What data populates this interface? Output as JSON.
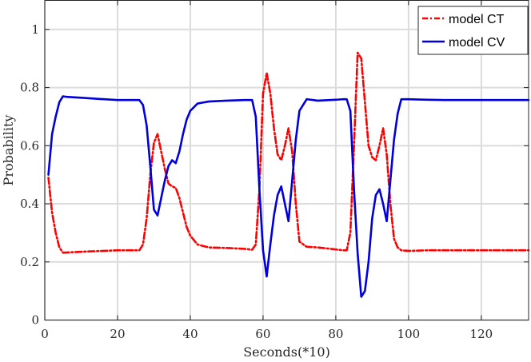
{
  "chart_data": {
    "type": "line",
    "title": "",
    "xlabel": "Seconds(*10)",
    "ylabel": "Probability",
    "xlim": [
      0,
      133
    ],
    "ylim": [
      0,
      1.1
    ],
    "xticks": [
      0,
      20,
      40,
      60,
      80,
      100,
      120
    ],
    "yticks": [
      0,
      0.2,
      0.4,
      0.6,
      0.8,
      1
    ],
    "ytick_labels": [
      "0",
      "0.2",
      "0.4",
      "0.6",
      "0.8",
      "1"
    ],
    "grid": true,
    "legend_position": "top-right",
    "series": [
      {
        "name": "model CT",
        "color": "#ff0000",
        "style": "dash-dot",
        "x": [
          1,
          2,
          3,
          4,
          5,
          10,
          20,
          26,
          27,
          28,
          29,
          30,
          31,
          32,
          33,
          34,
          35,
          36,
          37,
          38,
          39,
          40,
          42,
          45,
          50,
          55,
          57,
          58,
          59,
          60,
          61,
          62,
          63,
          64,
          65,
          66,
          67,
          68,
          69,
          70,
          72,
          75,
          80,
          82,
          83,
          84,
          85,
          86,
          87,
          88,
          89,
          90,
          91,
          92,
          93,
          94,
          95,
          96,
          97,
          98,
          100,
          105,
          110,
          120,
          133
        ],
        "y": [
          0.49,
          0.37,
          0.3,
          0.25,
          0.232,
          0.235,
          0.24,
          0.24,
          0.26,
          0.35,
          0.5,
          0.61,
          0.64,
          0.58,
          0.52,
          0.47,
          0.46,
          0.455,
          0.42,
          0.37,
          0.32,
          0.29,
          0.26,
          0.25,
          0.248,
          0.245,
          0.242,
          0.26,
          0.45,
          0.78,
          0.85,
          0.78,
          0.66,
          0.57,
          0.55,
          0.6,
          0.66,
          0.58,
          0.4,
          0.27,
          0.252,
          0.25,
          0.243,
          0.24,
          0.24,
          0.3,
          0.6,
          0.92,
          0.9,
          0.75,
          0.6,
          0.56,
          0.55,
          0.6,
          0.66,
          0.57,
          0.4,
          0.28,
          0.25,
          0.24,
          0.238,
          0.24,
          0.24,
          0.24,
          0.24
        ]
      },
      {
        "name": "model CV",
        "color": "#0000dd",
        "style": "solid",
        "x": [
          1,
          2,
          3,
          4,
          5,
          6,
          10,
          20,
          26,
          27,
          28,
          29,
          30,
          31,
          32,
          33,
          34,
          35,
          36,
          37,
          38,
          39,
          40,
          42,
          45,
          50,
          55,
          57,
          58,
          59,
          60,
          61,
          62,
          63,
          64,
          65,
          66,
          67,
          68,
          69,
          70,
          72,
          75,
          80,
          82,
          83,
          84,
          85,
          86,
          87,
          88,
          89,
          90,
          91,
          92,
          93,
          94,
          95,
          96,
          97,
          98,
          100,
          105,
          110,
          120,
          133
        ],
        "y": [
          0.5,
          0.64,
          0.7,
          0.75,
          0.77,
          0.768,
          0.765,
          0.757,
          0.757,
          0.74,
          0.67,
          0.53,
          0.38,
          0.36,
          0.42,
          0.48,
          0.53,
          0.55,
          0.54,
          0.58,
          0.64,
          0.69,
          0.72,
          0.745,
          0.752,
          0.755,
          0.757,
          0.757,
          0.7,
          0.45,
          0.24,
          0.15,
          0.26,
          0.36,
          0.43,
          0.46,
          0.4,
          0.34,
          0.48,
          0.62,
          0.72,
          0.76,
          0.755,
          0.758,
          0.76,
          0.76,
          0.72,
          0.45,
          0.23,
          0.08,
          0.1,
          0.2,
          0.35,
          0.43,
          0.45,
          0.4,
          0.34,
          0.48,
          0.62,
          0.71,
          0.76,
          0.76,
          0.758,
          0.757,
          0.757,
          0.757
        ]
      }
    ]
  }
}
